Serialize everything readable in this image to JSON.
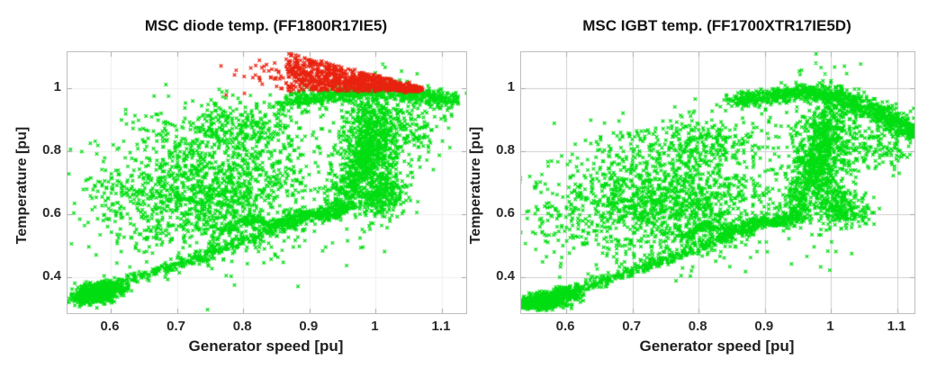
{
  "figure": {
    "background": "#ffffff",
    "text_color": "#1f1f1f",
    "axes_box_color": "#bdbdbd"
  },
  "chart_data": [
    {
      "type": "scatter",
      "title": "MSC diode temp. (FF1800R17IE5)",
      "xlabel": "Generator speed [pu]",
      "ylabel": "Temperature [pu]",
      "xlim": [
        0.5348,
        1.1367
      ],
      "ylim": [
        0.284,
        1.115
      ],
      "x_ticks": [
        0.6,
        0.7,
        0.8,
        0.9,
        1,
        1.1
      ],
      "x_tick_labels": [
        "0.6",
        "0.7",
        "0.8",
        "0.9",
        "1",
        "1.1"
      ],
      "y_ticks": [
        0.4,
        0.6,
        0.8,
        1
      ],
      "y_tick_labels": [
        "0.4",
        "0.6",
        "0.8",
        "1"
      ],
      "grid": true,
      "grid_color": "#efefef",
      "marker": "x",
      "series": [
        {
          "name": "green-points",
          "color": "#00dd11",
          "seed": 11,
          "clusters": [
            {
              "kind": "gauss",
              "cx": 0.578,
              "cy": 0.345,
              "sx": 0.013,
              "sy": 0.012,
              "rot": -25,
              "n": 520
            },
            {
              "kind": "gauss",
              "cx": 0.557,
              "cy": 0.332,
              "sx": 0.01,
              "sy": 0.01,
              "rot": -20,
              "n": 160
            },
            {
              "kind": "ring",
              "cx": 0.57,
              "cy": 0.343,
              "rx": 0.014,
              "ry": 0.01,
              "jitter": 0.0022,
              "n": 150
            },
            {
              "kind": "gauss",
              "cx": 0.601,
              "cy": 0.366,
              "sx": 0.012,
              "sy": 0.009,
              "rot": -30,
              "n": 180
            },
            {
              "kind": "band",
              "path": [
                [
                  0.585,
                  0.355
                ],
                [
                  0.63,
                  0.39
                ],
                [
                  0.68,
                  0.425
                ],
                [
                  0.73,
                  0.46
                ],
                [
                  0.78,
                  0.5
                ],
                [
                  0.83,
                  0.54
                ],
                [
                  0.88,
                  0.575
                ],
                [
                  0.93,
                  0.61
                ],
                [
                  0.96,
                  0.635
                ]
              ],
              "jitter": 0.009,
              "n": 520
            },
            {
              "kind": "band",
              "path": [
                [
                  0.77,
                  0.545
                ],
                [
                  0.81,
                  0.585
                ],
                [
                  0.85,
                  0.565
                ],
                [
                  0.89,
                  0.605
                ],
                [
                  0.93,
                  0.585
                ],
                [
                  0.96,
                  0.625
                ]
              ],
              "jitter": 0.007,
              "n": 300
            },
            {
              "kind": "gauss",
              "cx": 0.755,
              "cy": 0.675,
              "sx": 0.078,
              "sy": 0.1,
              "rot": 0,
              "n": 1450
            },
            {
              "kind": "gauss",
              "cx": 0.8,
              "cy": 0.88,
              "sx": 0.06,
              "sy": 0.045,
              "rot": 0,
              "n": 330
            },
            {
              "kind": "gauss",
              "cx": 0.625,
              "cy": 0.625,
              "sx": 0.045,
              "sy": 0.075,
              "rot": 0,
              "n": 120
            },
            {
              "kind": "gauss",
              "cx": 0.995,
              "cy": 0.8,
              "sx": 0.024,
              "sy": 0.105,
              "rot": 0,
              "n": 820
            },
            {
              "kind": "band",
              "path": [
                [
                  0.945,
                  0.62
                ],
                [
                  0.963,
                  0.7
                ],
                [
                  0.98,
                  0.78
                ],
                [
                  0.995,
                  0.86
                ],
                [
                  1.005,
                  0.93
                ]
              ],
              "jitter": 0.014,
              "n": 380
            },
            {
              "kind": "gauss",
              "cx": 1.01,
              "cy": 0.655,
              "sx": 0.02,
              "sy": 0.03,
              "rot": 0,
              "n": 190
            },
            {
              "kind": "gauss",
              "cx": 1.06,
              "cy": 0.86,
              "sx": 0.025,
              "sy": 0.05,
              "rot": 0,
              "n": 130
            },
            {
              "kind": "band",
              "path": [
                [
                  0.865,
                  0.955
                ],
                [
                  0.92,
                  0.975
                ],
                [
                  0.98,
                  0.985
                ],
                [
                  1.03,
                  0.985
                ],
                [
                  1.08,
                  0.973
                ],
                [
                  1.118,
                  0.962
                ]
              ],
              "jitter": 0.013,
              "n": 680
            },
            {
              "kind": "gauss",
              "cx": 0.67,
              "cy": 0.9,
              "sx": 0.03,
              "sy": 0.028,
              "rot": 0,
              "n": 12
            }
          ]
        },
        {
          "name": "red-points",
          "color": "#e8220e",
          "seed": 7,
          "clusters": [
            {
              "kind": "wedge",
              "x0": 0.868,
              "x1": 1.068,
              "yb": 0.992,
              "yt0": 1.112,
              "yt1": 1.002,
              "n": 950
            },
            {
              "kind": "gauss",
              "cx": 0.835,
              "cy": 1.045,
              "sx": 0.028,
              "sy": 0.028,
              "rot": 0,
              "n": 38
            }
          ]
        }
      ]
    },
    {
      "type": "scatter",
      "title": "MSC IGBT temp. (FF1700XTR17IE5D)",
      "xlabel": "Generator speed [pu]",
      "ylabel": "Temperature [pu]",
      "xlim": [
        0.532,
        1.1258
      ],
      "ylim": [
        0.284,
        1.115
      ],
      "x_ticks": [
        0.6,
        0.7,
        0.8,
        0.9,
        1,
        1.1
      ],
      "x_tick_labels": [
        "0.6",
        "0.7",
        "0.8",
        "0.9",
        "1",
        "1.1"
      ],
      "y_ticks": [
        0.4,
        0.6,
        0.8,
        1
      ],
      "y_tick_labels": [
        "0.4",
        "0.6",
        "0.8",
        "1"
      ],
      "grid": true,
      "grid_color": "#cfcfcf",
      "marker": "x",
      "series": [
        {
          "name": "green-points",
          "color": "#00dd11",
          "seed": 21,
          "clusters": [
            {
              "kind": "gauss",
              "cx": 0.572,
              "cy": 0.326,
              "sx": 0.014,
              "sy": 0.011,
              "rot": -20,
              "n": 520
            },
            {
              "kind": "gauss",
              "cx": 0.548,
              "cy": 0.315,
              "sx": 0.01,
              "sy": 0.009,
              "rot": -15,
              "n": 160
            },
            {
              "kind": "ring",
              "cx": 0.564,
              "cy": 0.324,
              "rx": 0.015,
              "ry": 0.009,
              "jitter": 0.0022,
              "n": 150
            },
            {
              "kind": "gauss",
              "cx": 0.6,
              "cy": 0.345,
              "sx": 0.012,
              "sy": 0.009,
              "rot": -30,
              "n": 180
            },
            {
              "kind": "band",
              "path": [
                [
                  0.585,
                  0.335
                ],
                [
                  0.63,
                  0.37
                ],
                [
                  0.68,
                  0.405
                ],
                [
                  0.73,
                  0.44
                ],
                [
                  0.78,
                  0.48
                ],
                [
                  0.83,
                  0.52
                ],
                [
                  0.88,
                  0.555
                ],
                [
                  0.93,
                  0.59
                ],
                [
                  0.955,
                  0.61
                ]
              ],
              "jitter": 0.009,
              "n": 520
            },
            {
              "kind": "band",
              "path": [
                [
                  0.77,
                  0.52
                ],
                [
                  0.81,
                  0.56
                ],
                [
                  0.85,
                  0.545
                ],
                [
                  0.89,
                  0.585
                ],
                [
                  0.93,
                  0.565
                ],
                [
                  0.955,
                  0.6
                ]
              ],
              "jitter": 0.007,
              "n": 300
            },
            {
              "kind": "gauss",
              "cx": 0.75,
              "cy": 0.64,
              "sx": 0.08,
              "sy": 0.09,
              "rot": 0,
              "n": 1350
            },
            {
              "kind": "gauss",
              "cx": 0.8,
              "cy": 0.825,
              "sx": 0.06,
              "sy": 0.045,
              "rot": 0,
              "n": 300
            },
            {
              "kind": "gauss",
              "cx": 0.615,
              "cy": 0.585,
              "sx": 0.045,
              "sy": 0.07,
              "rot": 0,
              "n": 115
            },
            {
              "kind": "gauss",
              "cx": 0.99,
              "cy": 0.78,
              "sx": 0.026,
              "sy": 0.105,
              "rot": 0,
              "n": 780
            },
            {
              "kind": "band",
              "path": [
                [
                  0.94,
                  0.6
                ],
                [
                  0.957,
                  0.68
                ],
                [
                  0.974,
                  0.76
                ],
                [
                  0.99,
                  0.84
                ],
                [
                  1.0,
                  0.91
                ]
              ],
              "jitter": 0.014,
              "n": 360
            },
            {
              "kind": "gauss",
              "cx": 1.02,
              "cy": 0.615,
              "sx": 0.02,
              "sy": 0.03,
              "rot": 0,
              "n": 200
            },
            {
              "kind": "gauss",
              "cx": 1.08,
              "cy": 0.82,
              "sx": 0.03,
              "sy": 0.04,
              "rot": 0,
              "n": 150
            },
            {
              "kind": "band",
              "path": [
                [
                  0.85,
                  0.955
                ],
                [
                  0.9,
                  0.975
                ],
                [
                  0.95,
                  0.985
                ],
                [
                  0.985,
                  0.988
                ]
              ],
              "jitter": 0.012,
              "n": 420
            },
            {
              "kind": "band",
              "path": [
                [
                  0.99,
                  0.985
                ],
                [
                  1.03,
                  0.955
                ],
                [
                  1.06,
                  0.93
                ],
                [
                  1.09,
                  0.9
                ],
                [
                  1.115,
                  0.872
                ],
                [
                  1.124,
                  0.858
                ]
              ],
              "jitter": 0.015,
              "n": 620
            },
            {
              "kind": "gauss",
              "cx": 1.121,
              "cy": 0.857,
              "sx": 0.0045,
              "sy": 0.008,
              "rot": 0,
              "n": 70
            },
            {
              "kind": "gauss",
              "cx": 0.7,
              "cy": 0.86,
              "sx": 0.03,
              "sy": 0.025,
              "rot": 0,
              "n": 10
            }
          ]
        }
      ]
    }
  ]
}
